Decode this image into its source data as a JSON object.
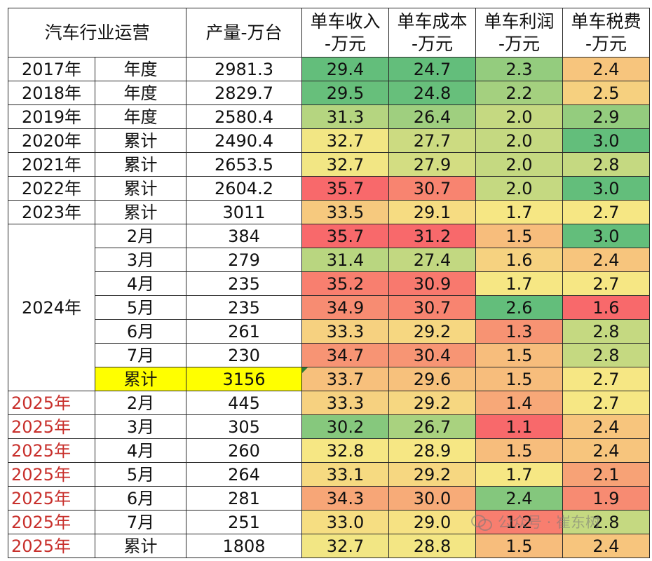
{
  "header": {
    "category": "汽车行业运营",
    "output": "产量-万台",
    "revenue": "单车收入\n-万元",
    "cost": "单车成本\n-万元",
    "profit": "单车利润\n-万元",
    "tax": "单车税费\n-万元"
  },
  "colors": {
    "green": "#63be7b",
    "yellow": "#f6e784",
    "red": "#f8696b",
    "highlight": "#ffff00",
    "red_text": "#c8302c"
  },
  "rows": [
    {
      "year": "2017年",
      "period": "年度",
      "output": "2981.3",
      "revenue": "29.4",
      "cost": "24.7",
      "profit": "2.3",
      "tax": "2.4"
    },
    {
      "year": "2018年",
      "period": "年度",
      "output": "2829.7",
      "revenue": "29.5",
      "cost": "24.8",
      "profit": "2.2",
      "tax": "2.5"
    },
    {
      "year": "2019年",
      "period": "年度",
      "output": "2580.4",
      "revenue": "31.3",
      "cost": "26.4",
      "profit": "2.0",
      "tax": "2.9"
    },
    {
      "year": "2020年",
      "period": "累计",
      "output": "2490.4",
      "revenue": "32.7",
      "cost": "27.7",
      "profit": "2.0",
      "tax": "3.0"
    },
    {
      "year": "2021年",
      "period": "累计",
      "output": "2653.5",
      "revenue": "32.7",
      "cost": "27.9",
      "profit": "2.0",
      "tax": "2.8"
    },
    {
      "year": "2022年",
      "period": "累计",
      "output": "2604.2",
      "revenue": "35.7",
      "cost": "30.7",
      "profit": "2.0",
      "tax": "3.0"
    },
    {
      "year": "2023年",
      "period": "累计",
      "output": "3011",
      "revenue": "33.5",
      "cost": "29.1",
      "profit": "1.7",
      "tax": "2.7"
    },
    {
      "year": "2024年",
      "period": "2月",
      "output": "384",
      "revenue": "35.7",
      "cost": "31.2",
      "profit": "1.5",
      "tax": "3.0"
    },
    {
      "year": "2024年",
      "period": "3月",
      "output": "279",
      "revenue": "31.4",
      "cost": "27.4",
      "profit": "1.6",
      "tax": "2.4"
    },
    {
      "year": "2024年",
      "period": "4月",
      "output": "235",
      "revenue": "35.2",
      "cost": "30.9",
      "profit": "1.7",
      "tax": "2.7"
    },
    {
      "year": "2024年",
      "period": "5月",
      "output": "235",
      "revenue": "34.9",
      "cost": "30.7",
      "profit": "2.6",
      "tax": "1.6"
    },
    {
      "year": "2024年",
      "period": "6月",
      "output": "261",
      "revenue": "33.3",
      "cost": "29.2",
      "profit": "1.3",
      "tax": "2.8"
    },
    {
      "year": "2024年",
      "period": "7月",
      "output": "230",
      "revenue": "34.7",
      "cost": "30.4",
      "profit": "1.5",
      "tax": "2.8"
    },
    {
      "year": "2024年",
      "period": "累计",
      "output": "3156",
      "revenue": "33.7",
      "cost": "29.6",
      "profit": "1.5",
      "tax": "2.7",
      "highlight": true
    },
    {
      "year": "2025年",
      "period": "2月",
      "output": "445",
      "revenue": "33.3",
      "cost": "29.2",
      "profit": "1.4",
      "tax": "2.7",
      "red_year": true
    },
    {
      "year": "2025年",
      "period": "3月",
      "output": "305",
      "revenue": "30.2",
      "cost": "26.7",
      "profit": "1.1",
      "tax": "2.4",
      "red_year": true
    },
    {
      "year": "2025年",
      "period": "4月",
      "output": "260",
      "revenue": "32.8",
      "cost": "28.9",
      "profit": "1.5",
      "tax": "2.4",
      "red_year": true
    },
    {
      "year": "2025年",
      "period": "5月",
      "output": "264",
      "revenue": "33.1",
      "cost": "29.2",
      "profit": "1.7",
      "tax": "2.1",
      "red_year": true
    },
    {
      "year": "2025年",
      "period": "6月",
      "output": "281",
      "revenue": "34.3",
      "cost": "30.0",
      "profit": "2.4",
      "tax": "1.9",
      "red_year": true
    },
    {
      "year": "2025年",
      "period": "7月",
      "output": "251",
      "revenue": "33.0",
      "cost": "29.0",
      "profit": "1.2",
      "tax": "2.8",
      "red_year": true
    },
    {
      "year": "2025年",
      "period": "累计",
      "output": "1808",
      "revenue": "32.7",
      "cost": "28.8",
      "profit": "1.5",
      "tax": "2.4",
      "red_year": true
    }
  ],
  "heat_columns": {
    "revenue": {
      "low_color": "green",
      "high_color": "red",
      "min": 29.4,
      "mid": 32.8,
      "max": 35.7
    },
    "cost": {
      "low_color": "green",
      "high_color": "red",
      "min": 24.7,
      "mid": 28.9,
      "max": 31.2
    },
    "profit": {
      "low_color": "red",
      "high_color": "green",
      "min": 1.1,
      "mid": 1.7,
      "max": 2.6
    },
    "tax": {
      "low_color": "red",
      "high_color": "green",
      "min": 1.6,
      "mid": 2.7,
      "max": 3.0
    }
  },
  "watermark": {
    "icon": "wechat-icon",
    "text": "公众号 · 崔东树"
  }
}
